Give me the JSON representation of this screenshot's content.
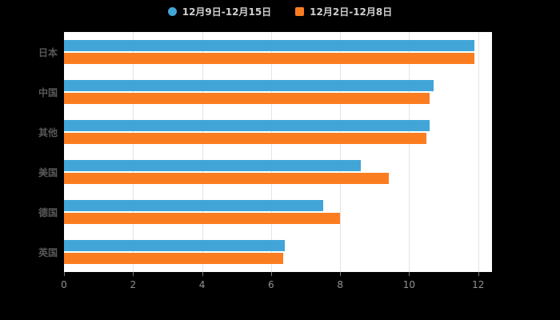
{
  "legend": {
    "items": [
      {
        "label": "12月9日-12月15日",
        "marker": "circle",
        "color": "#42a5d8"
      },
      {
        "label": "12月2日-12月8日",
        "marker": "square",
        "color": "#fb7d21"
      }
    ]
  },
  "chart_data": {
    "type": "bar",
    "orientation": "horizontal",
    "title": "",
    "categories": [
      "日本",
      "中国",
      "其他",
      "美国",
      "德国",
      "英国"
    ],
    "series": [
      {
        "name": "12月9日-12月15日",
        "color": "#42a5d8",
        "values": [
          11.9,
          10.7,
          10.6,
          8.6,
          7.5,
          6.4
        ]
      },
      {
        "name": "12月2日-12月8日",
        "color": "#fb7d21",
        "values": [
          11.9,
          10.6,
          10.5,
          9.4,
          8.0,
          6.35
        ]
      }
    ],
    "xlim": [
      0,
      12.4
    ],
    "xticks": [
      0,
      2,
      4,
      6,
      8,
      10,
      12
    ],
    "grid": true,
    "legend_position": "top",
    "background": "#000000",
    "plot_background": "#ffffff"
  }
}
